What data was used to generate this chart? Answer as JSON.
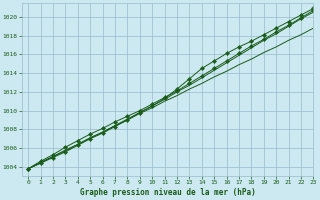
{
  "background_color": "#cce8f0",
  "grid_color": "#99bbcc",
  "line_color": "#1a5c1a",
  "xlabel": "Graphe pression niveau de la mer (hPa)",
  "xlim": [
    -0.5,
    23
  ],
  "ylim": [
    1003.0,
    1021.5
  ],
  "yticks": [
    1004,
    1006,
    1008,
    1010,
    1012,
    1014,
    1016,
    1018,
    1020
  ],
  "xticks": [
    0,
    1,
    2,
    3,
    4,
    5,
    6,
    7,
    8,
    9,
    10,
    11,
    12,
    13,
    14,
    15,
    16,
    17,
    18,
    19,
    20,
    21,
    22,
    23
  ],
  "x": [
    0,
    1,
    2,
    3,
    4,
    5,
    6,
    7,
    8,
    9,
    10,
    11,
    12,
    13,
    14,
    15,
    16,
    17,
    18,
    19,
    20,
    21,
    22,
    23
  ],
  "line1": [
    1003.8,
    1004.5,
    1005.1,
    1005.8,
    1006.4,
    1007.1,
    1007.7,
    1008.4,
    1009.0,
    1009.7,
    1010.3,
    1011.0,
    1011.6,
    1012.3,
    1012.9,
    1013.6,
    1014.2,
    1014.9,
    1015.5,
    1016.2,
    1016.8,
    1017.5,
    1018.1,
    1018.8
  ],
  "line2": [
    1003.8,
    1004.4,
    1005.0,
    1005.6,
    1006.3,
    1007.0,
    1007.6,
    1008.3,
    1009.0,
    1009.8,
    1010.5,
    1011.3,
    1012.3,
    1013.4,
    1014.5,
    1015.3,
    1016.1,
    1016.8,
    1017.4,
    1018.1,
    1018.8,
    1019.5,
    1020.2,
    1020.9
  ],
  "line3": [
    1003.8,
    1004.6,
    1005.3,
    1006.1,
    1006.8,
    1007.5,
    1008.1,
    1008.8,
    1009.4,
    1010.0,
    1010.7,
    1011.4,
    1012.1,
    1012.9,
    1013.7,
    1014.5,
    1015.3,
    1016.1,
    1016.9,
    1017.6,
    1018.4,
    1019.1,
    1019.9,
    1020.7
  ],
  "line4": [
    1003.8,
    1004.4,
    1005.1,
    1005.7,
    1006.4,
    1007.1,
    1007.7,
    1008.4,
    1009.1,
    1009.8,
    1010.5,
    1011.2,
    1012.0,
    1012.7,
    1013.5,
    1014.3,
    1015.1,
    1015.9,
    1016.7,
    1017.5,
    1018.2,
    1019.0,
    1019.8,
    1020.5
  ]
}
